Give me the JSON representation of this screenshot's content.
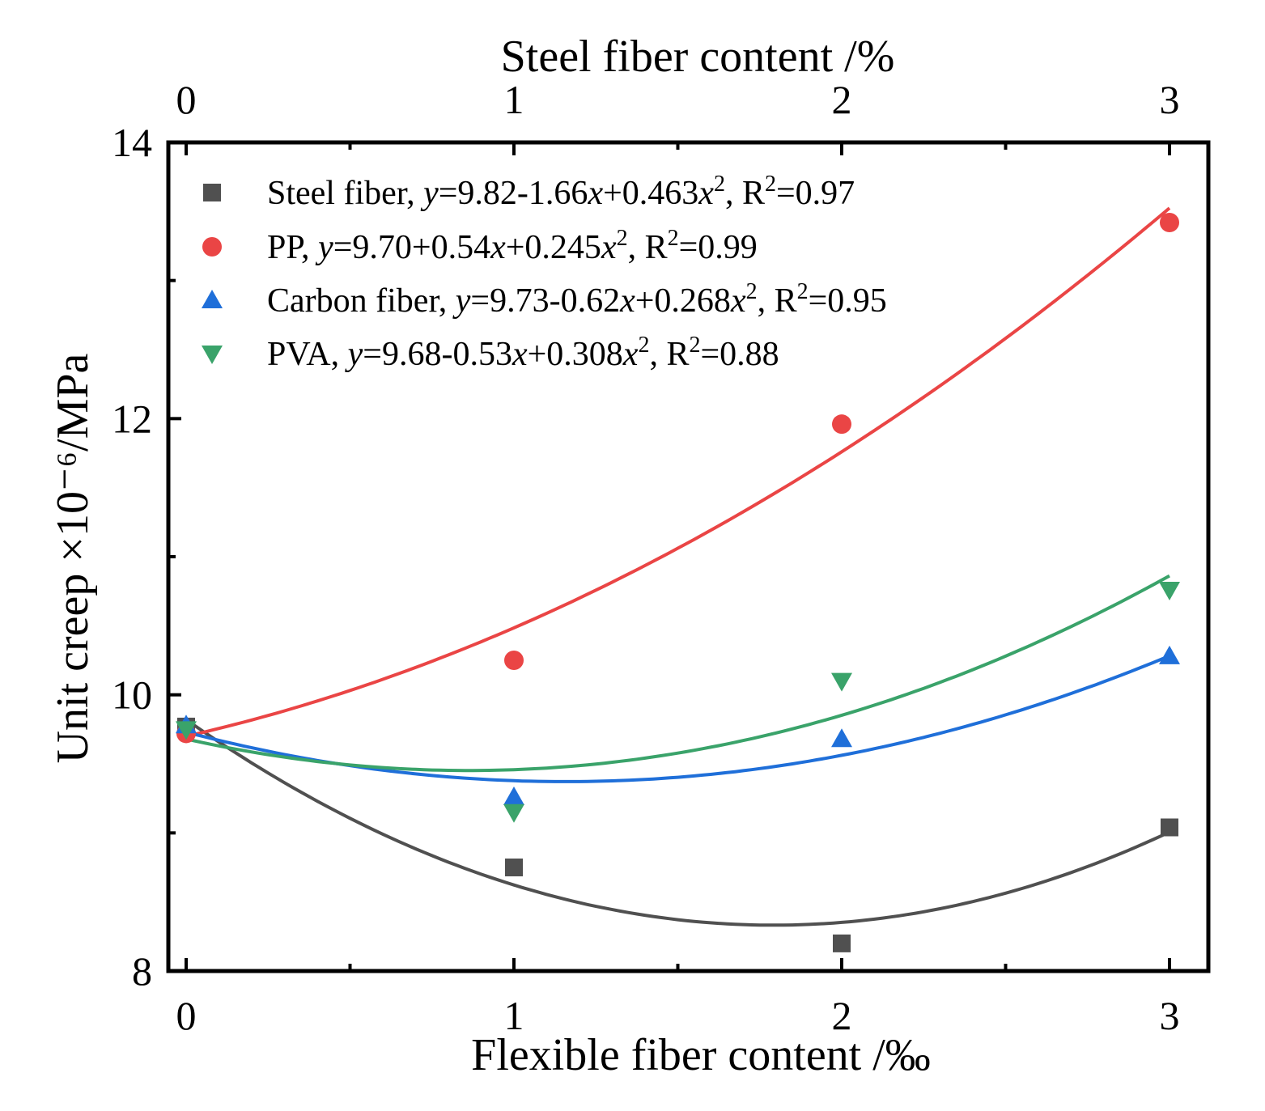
{
  "chart_data": {
    "type": "scatter",
    "title": "",
    "xlabel": "Flexible fiber content /‰",
    "x2label": "Steel fiber content /%",
    "ylabel": "Unit creep ×10⁻⁶/MPa",
    "xlim": [
      -0.05,
      3.1
    ],
    "ylim": [
      8,
      14
    ],
    "xticks": [
      0,
      1,
      2,
      3
    ],
    "yticks": [
      8,
      10,
      12,
      14
    ],
    "x2ticks": [
      0,
      1,
      2,
      3
    ],
    "legend_position": "top-left",
    "series": [
      {
        "name": "Steel fiber",
        "marker": "square",
        "color": "#505050",
        "x": [
          0,
          1,
          2,
          3
        ],
        "y": [
          9.77,
          8.75,
          8.2,
          9.04
        ],
        "fit": {
          "a": 9.82,
          "b": -1.66,
          "c": 0.463
        },
        "equation": "y=9.82-1.66x+0.463x2",
        "r2": "0.97",
        "legend": {
          "name": "Steel fiber, ",
          "y": "y",
          "eq1": "=9.82-1.66",
          "x1": "x",
          "eq2": "+0.463",
          "x2": "x",
          "sup": "2",
          "r2pre": ", R",
          "r2sup": "2",
          "r2val": "=0.97"
        }
      },
      {
        "name": "PP",
        "marker": "circle",
        "color": "#ea4545",
        "x": [
          0,
          1,
          2,
          3
        ],
        "y": [
          9.72,
          10.25,
          11.96,
          13.42
        ],
        "fit": {
          "a": 9.7,
          "b": 0.54,
          "c": 0.245
        },
        "equation": "y=9.70+0.54x+0.245x2",
        "r2": "0.99",
        "legend": {
          "name": "PP, ",
          "y": "y",
          "eq1": "=9.70+0.54",
          "x1": "x",
          "eq2": "+0.245",
          "x2": "x",
          "sup": "2",
          "r2pre": ", R",
          "r2sup": "2",
          "r2val": "=0.99"
        }
      },
      {
        "name": "Carbon fiber",
        "marker": "triangle-up",
        "color": "#1f6fd9",
        "x": [
          0,
          1,
          2,
          3
        ],
        "y": [
          9.78,
          9.26,
          9.68,
          10.28
        ],
        "fit": {
          "a": 9.73,
          "b": -0.62,
          "c": 0.268
        },
        "equation": "y=9.73-0.62x+0.268x2",
        "r2": "0.95",
        "legend": {
          "name": "Carbon fiber, ",
          "y": "y",
          "eq1": "=9.73-0.62",
          "x1": "x",
          "eq2": "+0.268",
          "x2": "x",
          "sup": "2",
          "r2pre": ", R",
          "r2sup": "2",
          "r2val": "=0.95"
        }
      },
      {
        "name": "PVA",
        "marker": "triangle-down",
        "color": "#3aa36a",
        "x": [
          0,
          1,
          2,
          3
        ],
        "y": [
          9.75,
          9.15,
          10.1,
          10.76
        ],
        "fit": {
          "a": 9.68,
          "b": -0.53,
          "c": 0.308
        },
        "equation": "y=9.68-0.53x+0.308x2",
        "r2": "0.88",
        "legend": {
          "name": "PVA, ",
          "y": "y",
          "eq1": "=9.68-0.53",
          "x1": "x",
          "eq2": "+0.308",
          "x2": "x",
          "sup": "2",
          "r2pre": ", R",
          "r2sup": "2",
          "r2val": "=0.88"
        }
      }
    ]
  }
}
